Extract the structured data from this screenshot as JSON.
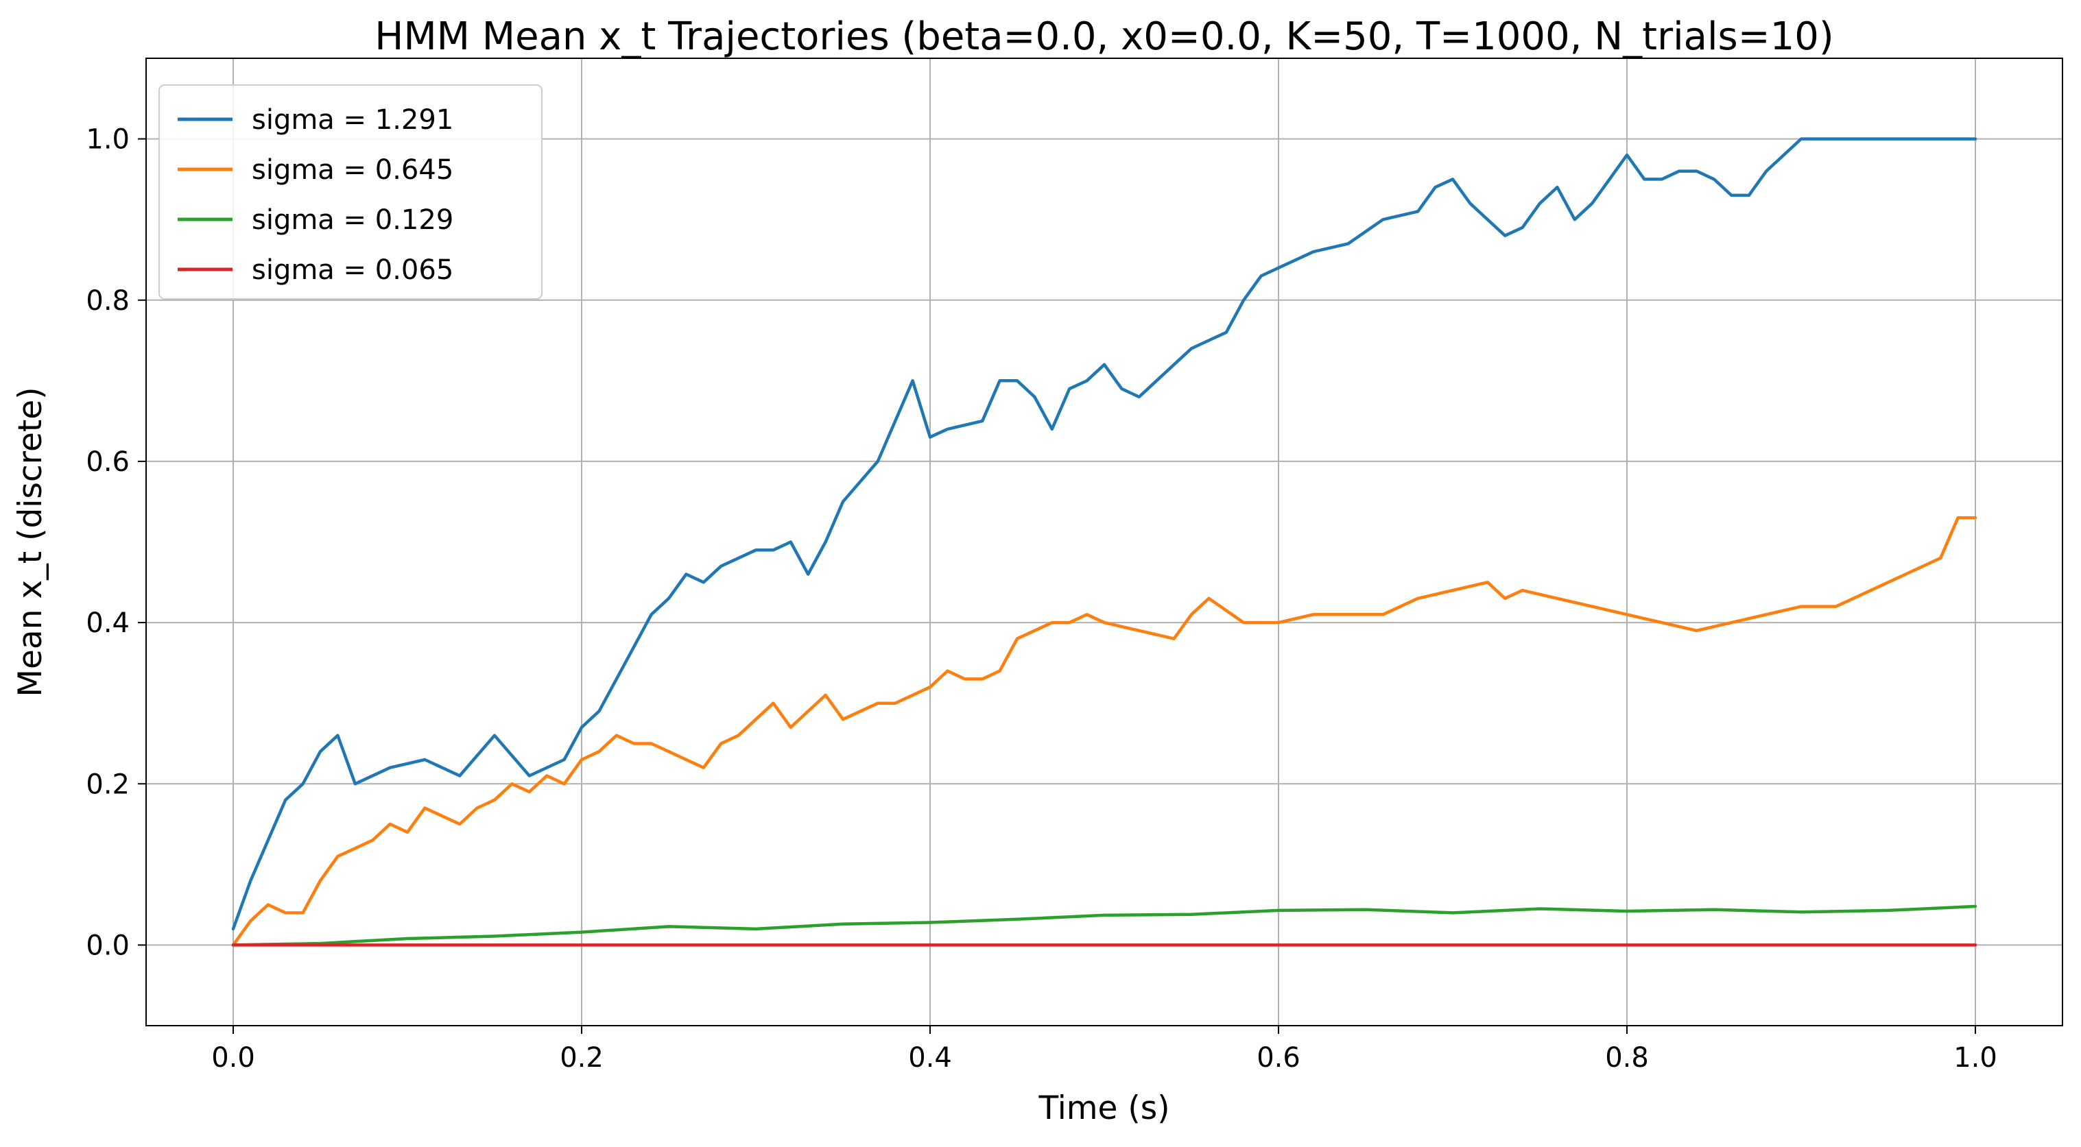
{
  "chart_data": {
    "type": "line",
    "title": "HMM Mean x_t Trajectories (beta=0.0, x0=0.0, K=50, T=1000, N_trials=10)",
    "xlabel": "Time (s)",
    "ylabel": "Mean x_t (discrete)",
    "xlim": [
      -0.05,
      1.05
    ],
    "ylim": [
      -0.1,
      1.1
    ],
    "xticks": [
      0.0,
      0.2,
      0.4,
      0.6,
      0.8,
      1.0
    ],
    "xtick_labels": [
      "0.0",
      "0.2",
      "0.4",
      "0.6",
      "0.8",
      "1.0"
    ],
    "yticks": [
      0.0,
      0.2,
      0.4,
      0.6,
      0.8,
      1.0
    ],
    "ytick_labels": [
      "0.0",
      "0.2",
      "0.4",
      "0.6",
      "0.8",
      "1.0"
    ],
    "grid": true,
    "legend_position": "upper-left",
    "series": [
      {
        "name": "sigma = 1.291",
        "color": "#1f77b4",
        "x": [
          0.0,
          0.01,
          0.02,
          0.03,
          0.04,
          0.05,
          0.06,
          0.07,
          0.09,
          0.11,
          0.13,
          0.15,
          0.17,
          0.19,
          0.2,
          0.21,
          0.22,
          0.23,
          0.24,
          0.25,
          0.26,
          0.27,
          0.28,
          0.3,
          0.31,
          0.32,
          0.33,
          0.34,
          0.35,
          0.37,
          0.38,
          0.39,
          0.4,
          0.41,
          0.43,
          0.44,
          0.45,
          0.46,
          0.47,
          0.48,
          0.49,
          0.5,
          0.51,
          0.52,
          0.53,
          0.55,
          0.56,
          0.57,
          0.58,
          0.59,
          0.6,
          0.62,
          0.64,
          0.66,
          0.68,
          0.69,
          0.7,
          0.71,
          0.72,
          0.73,
          0.74,
          0.75,
          0.76,
          0.77,
          0.78,
          0.79,
          0.8,
          0.81,
          0.82,
          0.83,
          0.84,
          0.85,
          0.86,
          0.87,
          0.88,
          0.89,
          0.9,
          0.95,
          1.0
        ],
        "values": [
          0.02,
          0.08,
          0.13,
          0.18,
          0.2,
          0.24,
          0.26,
          0.2,
          0.22,
          0.23,
          0.21,
          0.26,
          0.21,
          0.23,
          0.27,
          0.29,
          0.33,
          0.37,
          0.41,
          0.43,
          0.46,
          0.45,
          0.47,
          0.49,
          0.49,
          0.5,
          0.46,
          0.5,
          0.55,
          0.6,
          0.65,
          0.7,
          0.63,
          0.64,
          0.65,
          0.7,
          0.7,
          0.68,
          0.64,
          0.69,
          0.7,
          0.72,
          0.69,
          0.68,
          0.7,
          0.74,
          0.75,
          0.76,
          0.8,
          0.83,
          0.84,
          0.86,
          0.87,
          0.9,
          0.91,
          0.94,
          0.95,
          0.92,
          0.9,
          0.88,
          0.89,
          0.92,
          0.94,
          0.9,
          0.92,
          0.95,
          0.98,
          0.95,
          0.95,
          0.96,
          0.96,
          0.95,
          0.93,
          0.93,
          0.96,
          0.98,
          1.0,
          1.0,
          1.0
        ]
      },
      {
        "name": "sigma = 0.645",
        "color": "#ff7f0e",
        "x": [
          0.0,
          0.01,
          0.02,
          0.03,
          0.04,
          0.05,
          0.06,
          0.07,
          0.08,
          0.09,
          0.1,
          0.11,
          0.12,
          0.13,
          0.14,
          0.15,
          0.16,
          0.17,
          0.18,
          0.19,
          0.2,
          0.21,
          0.22,
          0.23,
          0.24,
          0.25,
          0.26,
          0.27,
          0.28,
          0.29,
          0.3,
          0.31,
          0.32,
          0.33,
          0.34,
          0.35,
          0.36,
          0.37,
          0.38,
          0.39,
          0.4,
          0.41,
          0.42,
          0.43,
          0.44,
          0.45,
          0.46,
          0.47,
          0.48,
          0.49,
          0.5,
          0.52,
          0.54,
          0.55,
          0.56,
          0.58,
          0.6,
          0.62,
          0.64,
          0.66,
          0.68,
          0.7,
          0.72,
          0.73,
          0.74,
          0.76,
          0.78,
          0.8,
          0.82,
          0.84,
          0.86,
          0.88,
          0.9,
          0.92,
          0.94,
          0.96,
          0.98,
          0.99,
          1.0
        ],
        "values": [
          0.0,
          0.03,
          0.05,
          0.04,
          0.04,
          0.08,
          0.11,
          0.12,
          0.13,
          0.15,
          0.14,
          0.17,
          0.16,
          0.15,
          0.17,
          0.18,
          0.2,
          0.19,
          0.21,
          0.2,
          0.23,
          0.24,
          0.26,
          0.25,
          0.25,
          0.24,
          0.23,
          0.22,
          0.25,
          0.26,
          0.28,
          0.3,
          0.27,
          0.29,
          0.31,
          0.28,
          0.29,
          0.3,
          0.3,
          0.31,
          0.32,
          0.34,
          0.33,
          0.33,
          0.34,
          0.38,
          0.39,
          0.4,
          0.4,
          0.41,
          0.4,
          0.39,
          0.38,
          0.41,
          0.43,
          0.4,
          0.4,
          0.41,
          0.41,
          0.41,
          0.43,
          0.44,
          0.45,
          0.43,
          0.44,
          0.43,
          0.42,
          0.41,
          0.4,
          0.39,
          0.4,
          0.41,
          0.42,
          0.42,
          0.44,
          0.46,
          0.48,
          0.53,
          0.53
        ]
      },
      {
        "name": "sigma = 0.129",
        "color": "#2ca02c",
        "x": [
          0.0,
          0.05,
          0.1,
          0.15,
          0.2,
          0.25,
          0.3,
          0.35,
          0.4,
          0.45,
          0.5,
          0.55,
          0.6,
          0.65,
          0.7,
          0.75,
          0.8,
          0.85,
          0.9,
          0.95,
          1.0
        ],
        "values": [
          0.0,
          0.002,
          0.008,
          0.011,
          0.016,
          0.023,
          0.02,
          0.026,
          0.028,
          0.032,
          0.037,
          0.038,
          0.043,
          0.044,
          0.04,
          0.045,
          0.042,
          0.044,
          0.041,
          0.043,
          0.048
        ]
      },
      {
        "name": "sigma = 0.065",
        "color": "#d62728",
        "x": [
          0.0,
          1.0
        ],
        "values": [
          0.0,
          0.0
        ]
      }
    ]
  }
}
